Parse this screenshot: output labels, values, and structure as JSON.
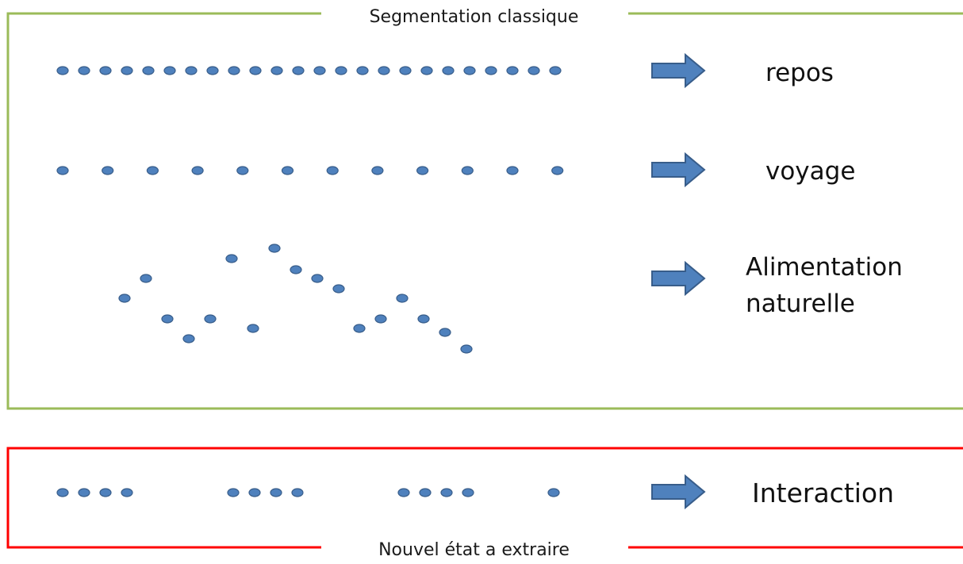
{
  "frames": {
    "classic": {
      "title": "Segmentation classique",
      "color": "#9bbb59"
    },
    "new_state": {
      "title": "Nouvel état a extraire",
      "color": "#ff0000"
    }
  },
  "states": {
    "repos": "repos",
    "voyage": "voyage",
    "alimentation_line1": "Alimentation",
    "alimentation_line2": "naturelle",
    "interaction": "Interaction"
  },
  "colors": {
    "point_fill": "#4f81bd",
    "point_stroke": "#385d8a",
    "arrow_fill": "#4f81bd",
    "arrow_stroke": "#385d8a"
  },
  "icons": {
    "arrow": "right-arrow-icon",
    "point": "gps-point-icon"
  }
}
